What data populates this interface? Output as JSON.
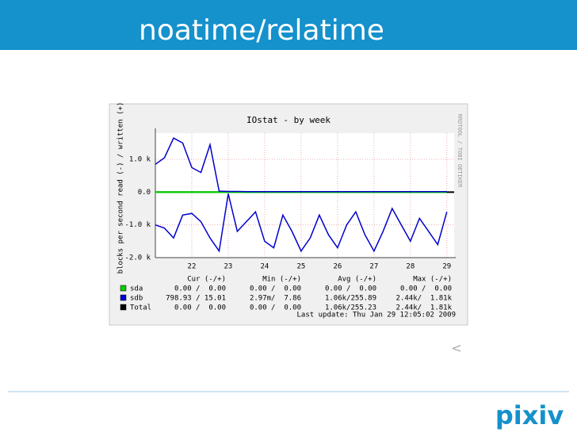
{
  "slide": {
    "title": "noatime/relatime",
    "nav_mark": "<",
    "logo": "pixiv"
  },
  "chart_data": {
    "type": "line",
    "title": "IOstat - by week",
    "y_label": "blocks per second read (-) / written (+)",
    "side_label": "RRDTOOL / TOBI OETIKER",
    "last_update": "Last update: Thu Jan 29 12:05:02 2009",
    "stats_headers": [
      "Cur (-/+)",
      "Min (-/+)",
      "Avg (-/+)",
      "Max (-/+)"
    ],
    "x": [
      21,
      21.25,
      21.5,
      21.75,
      22,
      22.25,
      22.5,
      22.75,
      23,
      23.25,
      23.5,
      23.75,
      24,
      24.25,
      24.5,
      24.75,
      25,
      25.25,
      25.5,
      25.75,
      26,
      26.25,
      26.5,
      26.75,
      27,
      27.25,
      27.5,
      27.75,
      28,
      28.25,
      28.5,
      28.75,
      29
    ],
    "xlim": [
      21,
      29.2
    ],
    "xticks": [
      22,
      23,
      24,
      25,
      26,
      27,
      28,
      29
    ],
    "ylim": [
      -2000,
      1800
    ],
    "yticks": [
      {
        "value": -2000,
        "label": "-2.0 k"
      },
      {
        "value": -1000,
        "label": "-1.0 k"
      },
      {
        "value": 0,
        "label": "0.0"
      },
      {
        "value": 1000,
        "label": "1.0 k"
      }
    ],
    "grid": true,
    "series": [
      {
        "name": "sda",
        "color": "#00cc00",
        "write": [
          8,
          8,
          8,
          8,
          8,
          8,
          8,
          8,
          8,
          8,
          8,
          8,
          8,
          8,
          8,
          8,
          8,
          8,
          8,
          8,
          8,
          8,
          8,
          8,
          8,
          8,
          8,
          8,
          8,
          8,
          8,
          8,
          8
        ],
        "read": [
          -8,
          -8,
          -8,
          -8,
          -8,
          -8,
          -8,
          -8,
          -8,
          -8,
          -8,
          -8,
          -8,
          -8,
          -8,
          -8,
          -8,
          -8,
          -8,
          -8,
          -8,
          -8,
          -8,
          -8,
          -8,
          -8,
          -8,
          -8,
          -8,
          -8,
          -8,
          -8,
          -8
        ],
        "stats": [
          "0.00 /  0.00",
          "0.00 /  0.00",
          "0.00 /  0.00",
          "0.00 /  0.00"
        ]
      },
      {
        "name": "sdb",
        "color": "#0000cc",
        "write": [
          850,
          1050,
          1650,
          1500,
          750,
          600,
          1450,
          30,
          20,
          20,
          15,
          15,
          15,
          15,
          15,
          15,
          15,
          15,
          15,
          15,
          15,
          15,
          15,
          15,
          15,
          15,
          15,
          15,
          15,
          15,
          15,
          15,
          15
        ],
        "read": [
          -1000,
          -1100,
          -1400,
          -700,
          -650,
          -900,
          -1400,
          -1800,
          -50,
          -1200,
          -900,
          -600,
          -1500,
          -1700,
          -700,
          -1200,
          -1800,
          -1400,
          -700,
          -1300,
          -1700,
          -1000,
          -600,
          -1300,
          -1800,
          -1200,
          -500,
          -1000,
          -1500,
          -800,
          -1200,
          -1600,
          -600
        ],
        "stats": [
          "798.93 / 15.01",
          "2.97m/  7.86",
          "1.06k/255.89",
          "2.44k/  1.81k"
        ]
      },
      {
        "name": "Total",
        "color": "#000000",
        "stats": [
          "0.00 /  0.00",
          "0.00 /  0.00",
          "1.06k/255.23",
          "2.44k/  1.81k"
        ]
      }
    ]
  }
}
